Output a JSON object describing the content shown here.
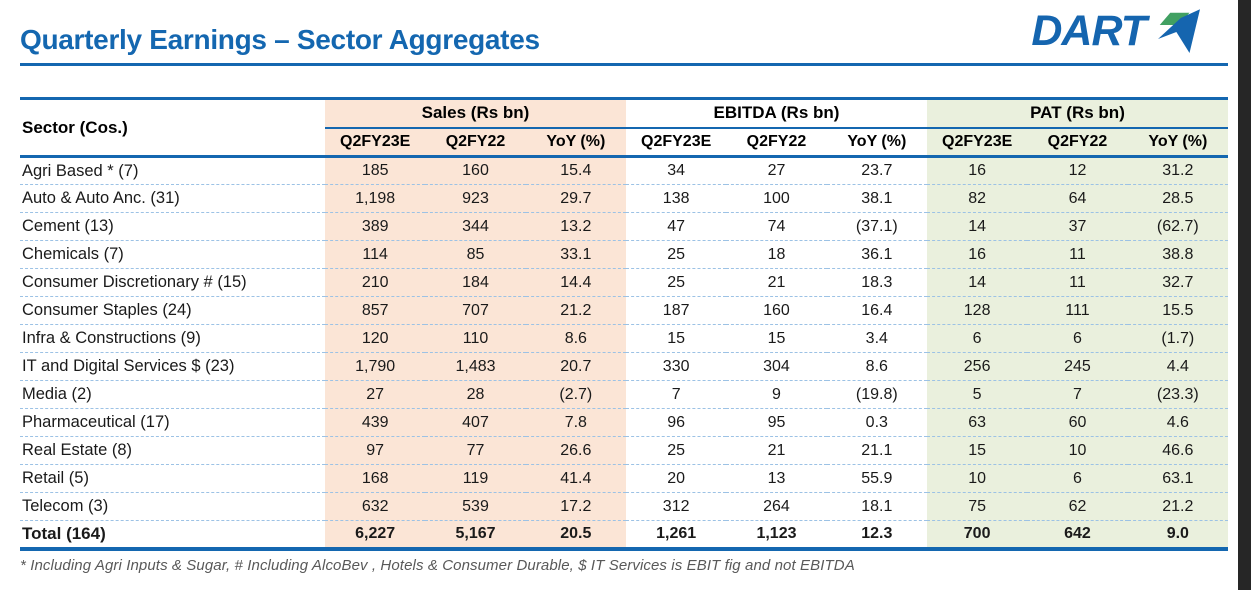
{
  "page": {
    "title": "Quarterly Earnings – Sector Aggregates"
  },
  "logo": {
    "text": "DART"
  },
  "table": {
    "sector_header": "Sector (Cos.)",
    "groups": [
      {
        "label": "Sales (Rs bn)"
      },
      {
        "label": "EBITDA (Rs bn)"
      },
      {
        "label": "PAT (Rs bn)"
      }
    ],
    "sub_headers": [
      "Q2FY23E",
      "Q2FY22",
      "YoY (%)"
    ],
    "rows": [
      {
        "sector": "Agri Based * (7)",
        "sales": [
          "185",
          "160",
          "15.4"
        ],
        "ebitda": [
          "34",
          "27",
          "23.7"
        ],
        "pat": [
          "16",
          "12",
          "31.2"
        ]
      },
      {
        "sector": "Auto & Auto Anc. (31)",
        "sales": [
          "1,198",
          "923",
          "29.7"
        ],
        "ebitda": [
          "138",
          "100",
          "38.1"
        ],
        "pat": [
          "82",
          "64",
          "28.5"
        ]
      },
      {
        "sector": "Cement (13)",
        "sales": [
          "389",
          "344",
          "13.2"
        ],
        "ebitda": [
          "47",
          "74",
          "(37.1)"
        ],
        "pat": [
          "14",
          "37",
          "(62.7)"
        ]
      },
      {
        "sector": "Chemicals (7)",
        "sales": [
          "114",
          "85",
          "33.1"
        ],
        "ebitda": [
          "25",
          "18",
          "36.1"
        ],
        "pat": [
          "16",
          "11",
          "38.8"
        ]
      },
      {
        "sector": "Consumer Discretionary # (15)",
        "sales": [
          "210",
          "184",
          "14.4"
        ],
        "ebitda": [
          "25",
          "21",
          "18.3"
        ],
        "pat": [
          "14",
          "11",
          "32.7"
        ]
      },
      {
        "sector": "Consumer Staples (24)",
        "sales": [
          "857",
          "707",
          "21.2"
        ],
        "ebitda": [
          "187",
          "160",
          "16.4"
        ],
        "pat": [
          "128",
          "111",
          "15.5"
        ]
      },
      {
        "sector": "Infra & Constructions (9)",
        "sales": [
          "120",
          "110",
          "8.6"
        ],
        "ebitda": [
          "15",
          "15",
          "3.4"
        ],
        "pat": [
          "6",
          "6",
          "(1.7)"
        ]
      },
      {
        "sector": "IT and Digital Services $ (23)",
        "sales": [
          "1,790",
          "1,483",
          "20.7"
        ],
        "ebitda": [
          "330",
          "304",
          "8.6"
        ],
        "pat": [
          "256",
          "245",
          "4.4"
        ]
      },
      {
        "sector": "Media (2)",
        "sales": [
          "27",
          "28",
          "(2.7)"
        ],
        "ebitda": [
          "7",
          "9",
          "(19.8)"
        ],
        "pat": [
          "5",
          "7",
          "(23.3)"
        ]
      },
      {
        "sector": "Pharmaceutical (17)",
        "sales": [
          "439",
          "407",
          "7.8"
        ],
        "ebitda": [
          "96",
          "95",
          "0.3"
        ],
        "pat": [
          "63",
          "60",
          "4.6"
        ]
      },
      {
        "sector": "Real Estate (8)",
        "sales": [
          "97",
          "77",
          "26.6"
        ],
        "ebitda": [
          "25",
          "21",
          "21.1"
        ],
        "pat": [
          "15",
          "10",
          "46.6"
        ]
      },
      {
        "sector": "Retail (5)",
        "sales": [
          "168",
          "119",
          "41.4"
        ],
        "ebitda": [
          "20",
          "13",
          "55.9"
        ],
        "pat": [
          "10",
          "6",
          "63.1"
        ]
      },
      {
        "sector": "Telecom (3)",
        "sales": [
          "632",
          "539",
          "17.2"
        ],
        "ebitda": [
          "312",
          "264",
          "18.1"
        ],
        "pat": [
          "75",
          "62",
          "21.2"
        ]
      }
    ],
    "total": {
      "sector": "Total (164)",
      "sales": [
        "6,227",
        "5,167",
        "20.5"
      ],
      "ebitda": [
        "1,261",
        "1,123",
        "12.3"
      ],
      "pat": [
        "700",
        "642",
        "9.0"
      ]
    }
  },
  "footnote": "* Including Agri Inputs & Sugar, # Including AlcoBev , Hotels & Consumer Durable, $ IT Services is EBIT fig and not EBITDA",
  "colors": {
    "accent_blue": "#1467B0",
    "logo_blue": "#1565AF",
    "logo_green": "#41A062",
    "sales_fill": "#FBE5D6",
    "pat_fill": "#EAF0DD",
    "dashed_rule_blue": "#9CC2E5",
    "footnote_gray": "#595959",
    "right_bar": "#262626"
  }
}
